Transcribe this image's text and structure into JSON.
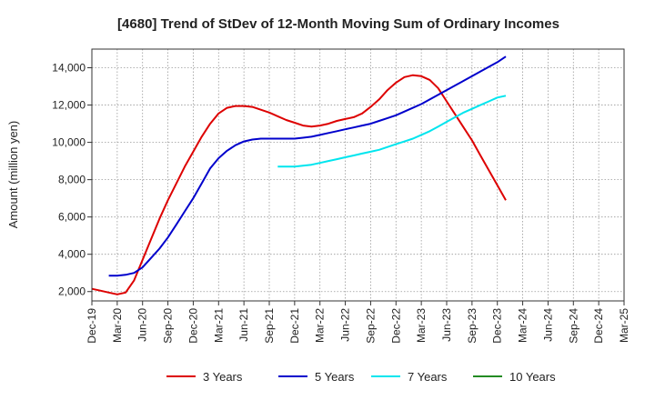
{
  "chart_data": {
    "type": "line",
    "title": "[4680]  Trend of StDev of 12-Month Moving Sum of Ordinary Incomes",
    "xlabel": "",
    "ylabel": "Amount (million yen)",
    "ylim": [
      1500,
      15000
    ],
    "yticks": [
      2000,
      4000,
      6000,
      8000,
      10000,
      12000,
      14000
    ],
    "ytick_labels": [
      "2,000",
      "4,000",
      "6,000",
      "8,000",
      "10,000",
      "12,000",
      "14,000"
    ],
    "xtick_labels": [
      "Dec-19",
      "Mar-20",
      "Jun-20",
      "Sep-20",
      "Dec-20",
      "Mar-21",
      "Jun-21",
      "Sep-21",
      "Dec-21",
      "Mar-22",
      "Jun-22",
      "Sep-22",
      "Dec-22",
      "Mar-23",
      "Jun-23",
      "Sep-23",
      "Dec-23",
      "Mar-24",
      "Jun-24",
      "Sep-24",
      "Dec-24",
      "Mar-25"
    ],
    "grid": true,
    "legend_position": "bottom",
    "series": [
      {
        "name": "3 Years",
        "color": "#dd0000",
        "values": [
          2150,
          2050,
          1950,
          1850,
          1950,
          2600,
          3700,
          4800,
          5900,
          6900,
          7800,
          8700,
          9500,
          10300,
          11000,
          11550,
          11850,
          11950,
          11950,
          11900,
          11750,
          11600,
          11400,
          11200,
          11050,
          10900,
          10850,
          10900,
          11000,
          11150,
          11250,
          11350,
          11550,
          11900,
          12300,
          12800,
          13200,
          13500,
          13600,
          13550,
          13350,
          12900,
          12200,
          11500,
          10800,
          10100,
          9300,
          8500,
          7700,
          6900
        ]
      },
      {
        "name": "5 Years",
        "color": "#0000cc",
        "values": [
          null,
          null,
          2850,
          2850,
          2900,
          3000,
          3300,
          3800,
          4300,
          4900,
          5600,
          6300,
          7000,
          7800,
          8600,
          9150,
          9550,
          9850,
          10050,
          10150,
          10200,
          10200,
          10200,
          10200,
          10200,
          10250,
          10300,
          10400,
          10500,
          10600,
          10700,
          10800,
          10900,
          11000,
          11150,
          11300,
          11450,
          11650,
          11850,
          12050,
          12300,
          12550,
          12800,
          13050,
          13300,
          13550,
          13800,
          14050,
          14300,
          14600
        ]
      },
      {
        "name": "7 Years",
        "color": "#00e5ee",
        "values": [
          null,
          null,
          null,
          null,
          null,
          null,
          null,
          null,
          null,
          null,
          null,
          null,
          null,
          null,
          null,
          null,
          null,
          null,
          null,
          null,
          null,
          null,
          8700,
          8700,
          8700,
          8750,
          8800,
          8900,
          9000,
          9100,
          9200,
          9300,
          9400,
          9500,
          9600,
          9750,
          9900,
          10050,
          10200,
          10400,
          10600,
          10850,
          11100,
          11350,
          11600,
          11800,
          12000,
          12200,
          12400,
          12500
        ]
      },
      {
        "name": "10 Years",
        "color": "#228b22",
        "values": []
      }
    ]
  }
}
